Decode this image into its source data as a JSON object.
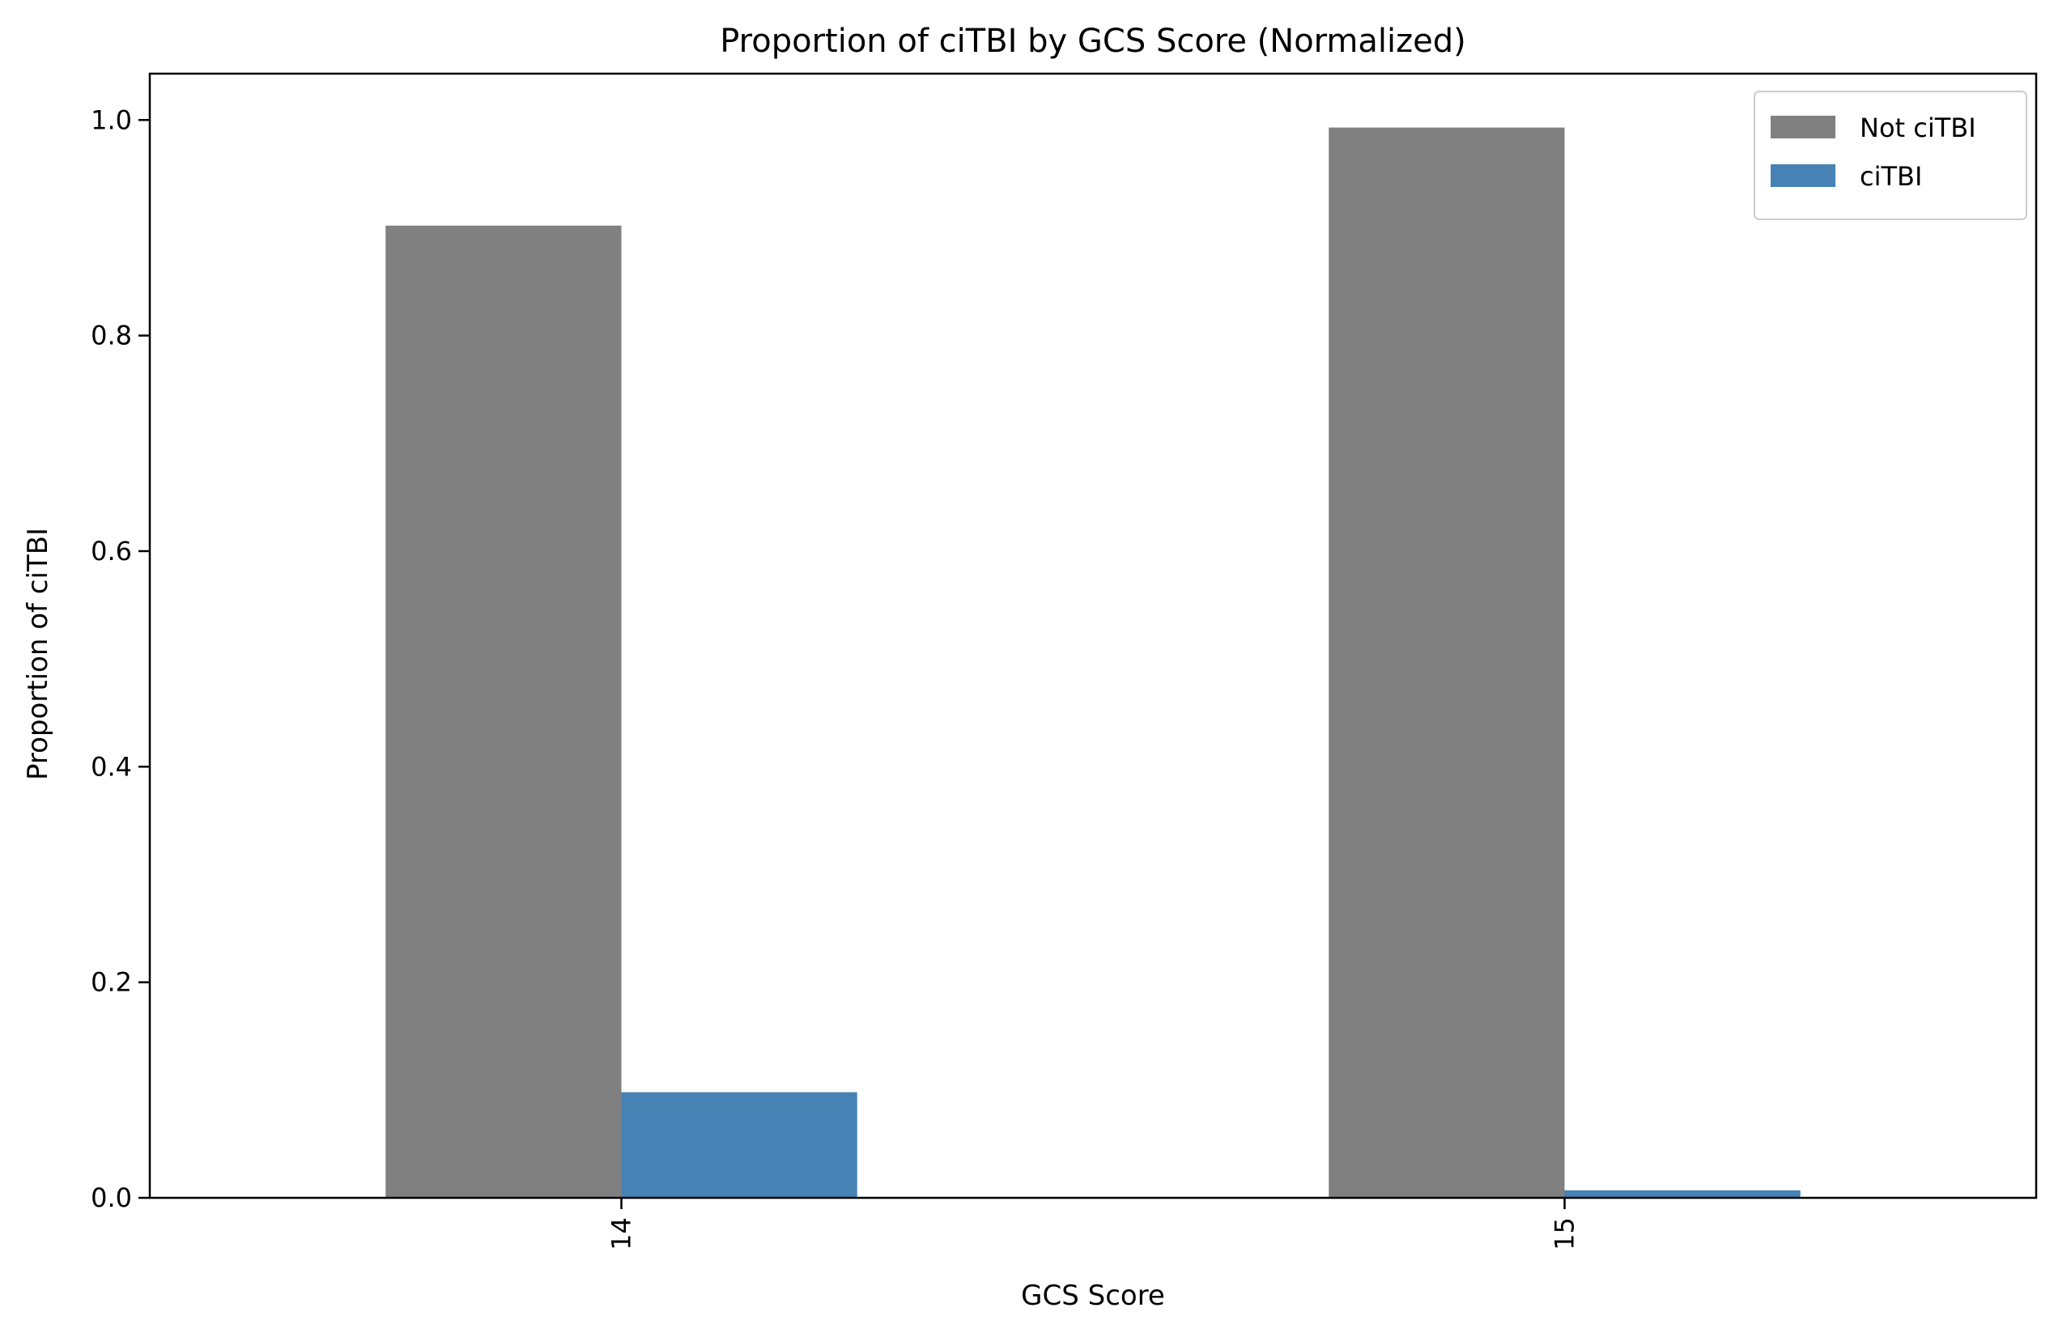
{
  "chart_data": {
    "type": "bar",
    "title": "Proportion of ciTBI by GCS Score (Normalized)",
    "xlabel": "GCS Score",
    "ylabel": "Proportion of ciTBI",
    "categories": [
      "14",
      "15"
    ],
    "series": [
      {
        "name": "Not ciTBI",
        "color": "#808080",
        "values": [
          0.902,
          0.993
        ]
      },
      {
        "name": "ciTBI",
        "color": "#4682b4",
        "values": [
          0.098,
          0.007
        ]
      }
    ],
    "ylim": [
      0,
      1.043
    ],
    "yticks": [
      0.0,
      0.2,
      0.4,
      0.6,
      0.8,
      1.0
    ],
    "ytick_labels": [
      "0.0",
      "0.2",
      "0.4",
      "0.6",
      "0.8",
      "1.0"
    ],
    "xtick_rotation": "vertical",
    "legend": "top-right",
    "grid": false
  }
}
